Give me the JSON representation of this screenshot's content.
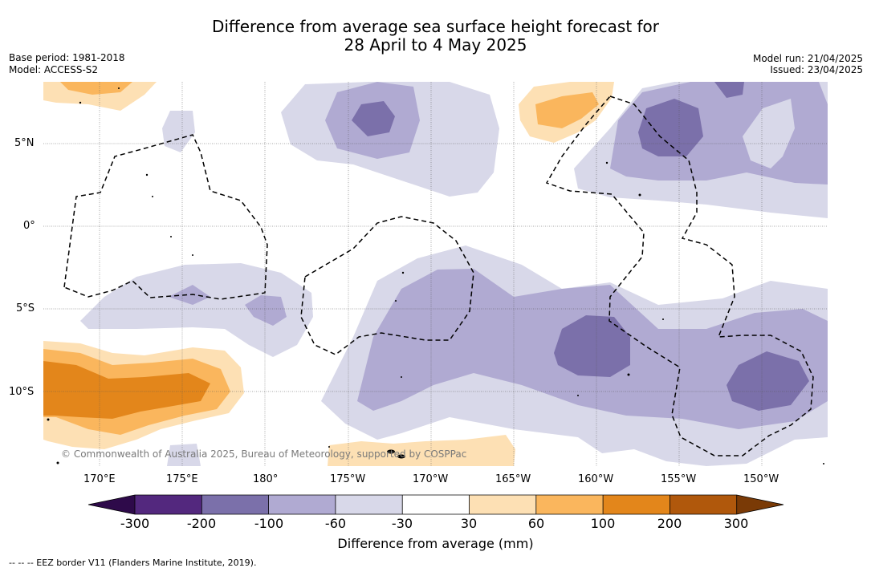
{
  "title": {
    "line1": "Difference from average sea surface height forecast for",
    "line2": "28 April to 4 May 2025"
  },
  "meta": {
    "base_period": "Base period: 1981-2018",
    "model": "Model: ACCESS-S2",
    "model_run": "Model run: 21/04/2025",
    "issued": "Issued: 23/04/2025"
  },
  "map": {
    "lon_ticks": [
      "170°E",
      "175°E",
      "180°",
      "175°W",
      "170°W",
      "165°W",
      "160°W",
      "155°W",
      "150°W"
    ],
    "lat_ticks": [
      "5°N",
      "0°",
      "5°S",
      "10°S"
    ],
    "credit": "© Commonwealth of Australia 2025, Bureau of Meteorology, supported by COSPPac",
    "colors": {
      "ocean": "#ffffff",
      "grid": "#555555",
      "eez_border": "#000000"
    }
  },
  "colorbar": {
    "labels": [
      "-300",
      "-200",
      "-100",
      "-60",
      "-30",
      "30",
      "60",
      "100",
      "200",
      "300"
    ],
    "colors": [
      "#2e0a4a",
      "#53287e",
      "#7b70aa",
      "#b0aad2",
      "#d8d8e9",
      "#ffffff",
      "#fde0b4",
      "#fab65d",
      "#e3861b",
      "#b0580c",
      "#7a3a06"
    ],
    "title": "Difference from average (mm)"
  },
  "footer": "-- -- -- EEZ border V11 (Flanders Marine Institute, 2019)."
}
